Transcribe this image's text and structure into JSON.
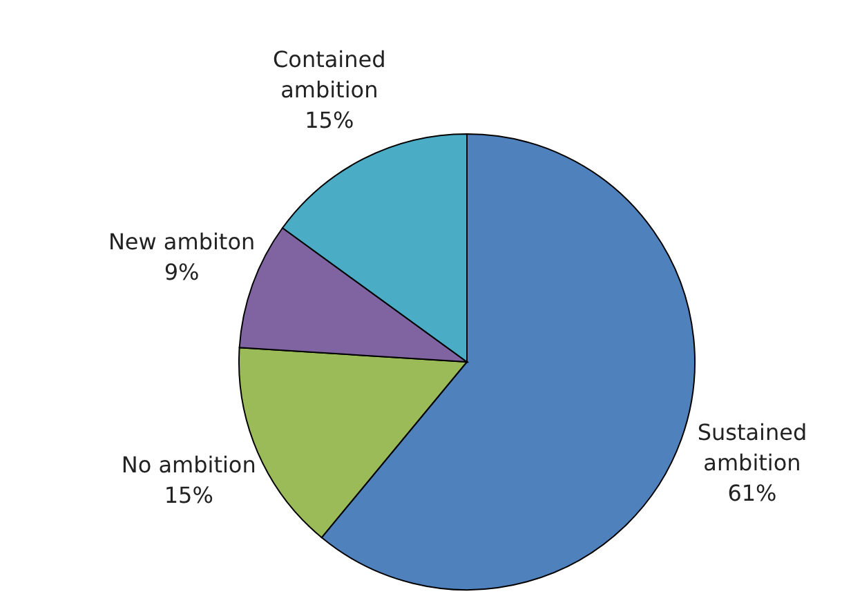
{
  "chart_data": {
    "type": "pie",
    "categories": [
      "Sustained ambition",
      "No ambition",
      "New ambiton",
      "Contained ambition"
    ],
    "values": [
      61,
      15,
      9,
      15
    ],
    "value_labels": [
      "61%",
      "15%",
      "9%",
      "15%"
    ],
    "colors": [
      "#4f81bd",
      "#9bbb59",
      "#8064a2",
      "#4bacc6"
    ]
  }
}
